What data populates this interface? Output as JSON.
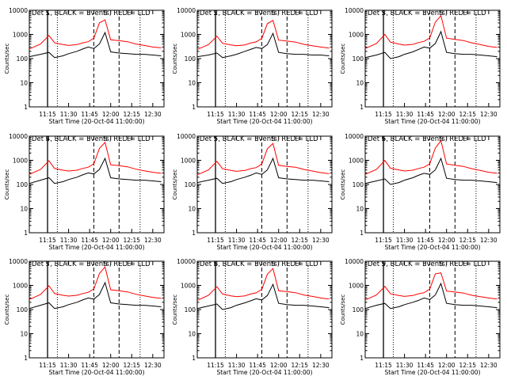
{
  "figure": {
    "ylabel": "Counts/sec",
    "xlabel": "Start Time (20-Oct-04 11:00:00)",
    "title_template": "Det {det},  BLACK = Events,  RED = LLD",
    "y_ticks": [
      "1",
      "10",
      "100",
      "1000",
      "10000"
    ],
    "x_ticks": [
      "11:15",
      "11:30",
      "11:45",
      "12:00",
      "12:15",
      "12:30"
    ],
    "markers": [
      "S",
      "S",
      "E"
    ],
    "colors": {
      "events": "#000000",
      "lld": "#ff0000",
      "background": "#ffffff"
    }
  },
  "chart_data": [
    {
      "type": "line",
      "title": "Det 1,  BLACK = Events,  RED = LLD",
      "detector": "1",
      "xlabel": "Start Time (20-Oct-04 11:00:00)",
      "ylabel": "Counts/sec",
      "y_scale": "log",
      "ylim": [
        1,
        10000
      ],
      "xlim": [
        "11:02",
        "12:38"
      ],
      "x": [
        "11:02",
        "11:10",
        "11:16",
        "11:20",
        "11:26",
        "11:30",
        "11:36",
        "11:40",
        "11:44",
        "11:48",
        "11:52",
        "11:56",
        "12:00",
        "12:06",
        "12:12",
        "12:18",
        "12:24",
        "12:30",
        "12:36"
      ],
      "series": [
        {
          "name": "Events",
          "color": "#000000",
          "values": [
            120,
            150,
            180,
            110,
            130,
            160,
            200,
            250,
            300,
            260,
            400,
            1200,
            190,
            170,
            160,
            150,
            150,
            140,
            130
          ]
        },
        {
          "name": "LLD",
          "color": "#ff0000",
          "values": [
            250,
            400,
            900,
            450,
            380,
            350,
            380,
            450,
            500,
            700,
            3000,
            4000,
            600,
            550,
            500,
            400,
            350,
            300,
            280
          ]
        }
      ]
    },
    {
      "type": "line",
      "title": "Det 2,  BLACK = Events,  RED = LLD",
      "detector": "2",
      "xlabel": "Start Time (20-Oct-04 11:00:00)",
      "ylabel": "Counts/sec",
      "y_scale": "log",
      "ylim": [
        1,
        10000
      ],
      "xlim": [
        "11:02",
        "12:38"
      ],
      "x": [
        "11:02",
        "11:10",
        "11:16",
        "11:20",
        "11:26",
        "11:30",
        "11:36",
        "11:40",
        "11:44",
        "11:48",
        "11:52",
        "11:56",
        "12:00",
        "12:06",
        "12:12",
        "12:18",
        "12:24",
        "12:30",
        "12:36"
      ],
      "series": [
        {
          "name": "Events",
          "color": "#000000",
          "values": [
            120,
            140,
            170,
            110,
            130,
            150,
            200,
            240,
            290,
            260,
            380,
            1100,
            180,
            160,
            150,
            150,
            140,
            140,
            130
          ]
        },
        {
          "name": "LLD",
          "color": "#ff0000",
          "values": [
            240,
            380,
            850,
            430,
            370,
            340,
            370,
            440,
            490,
            680,
            2800,
            3800,
            580,
            530,
            480,
            390,
            340,
            300,
            270
          ]
        }
      ]
    },
    {
      "type": "line",
      "title": "Det 3,  BLACK = Events,  RED = LLD",
      "detector": "3",
      "xlabel": "Start Time (20-Oct-04 11:00:00)",
      "ylabel": "Counts/sec",
      "y_scale": "log",
      "ylim": [
        1,
        10000
      ],
      "xlim": [
        "11:02",
        "12:38"
      ],
      "x": [
        "11:02",
        "11:10",
        "11:16",
        "11:20",
        "11:26",
        "11:30",
        "11:36",
        "11:40",
        "11:44",
        "11:48",
        "11:52",
        "11:56",
        "12:00",
        "12:06",
        "12:12",
        "12:18",
        "12:24",
        "12:30",
        "12:36"
      ],
      "series": [
        {
          "name": "Events",
          "color": "#000000",
          "values": [
            110,
            140,
            180,
            100,
            120,
            150,
            190,
            240,
            300,
            270,
            420,
            1300,
            180,
            160,
            150,
            150,
            140,
            130,
            120
          ]
        },
        {
          "name": "LLD",
          "color": "#ff0000",
          "values": [
            260,
            420,
            1000,
            480,
            400,
            360,
            390,
            460,
            520,
            720,
            3200,
            6000,
            700,
            620,
            560,
            450,
            380,
            320,
            290
          ]
        }
      ]
    },
    {
      "type": "line",
      "title": "Det 4,  BLACK = Events,  RED = LLD",
      "detector": "4",
      "xlabel": "Start Time (20-Oct-04 11:00:00)",
      "ylabel": "Counts/sec",
      "y_scale": "log",
      "ylim": [
        1,
        10000
      ],
      "xlim": [
        "11:02",
        "12:38"
      ],
      "x": [
        "11:02",
        "11:10",
        "11:16",
        "11:20",
        "11:26",
        "11:30",
        "11:36",
        "11:40",
        "11:44",
        "11:48",
        "11:52",
        "11:56",
        "12:00",
        "12:06",
        "12:12",
        "12:18",
        "12:24",
        "12:30",
        "12:36"
      ],
      "series": [
        {
          "name": "Events",
          "color": "#000000",
          "values": [
            110,
            150,
            190,
            110,
            130,
            160,
            200,
            250,
            300,
            270,
            420,
            1200,
            190,
            170,
            160,
            150,
            150,
            140,
            130
          ]
        },
        {
          "name": "LLD",
          "color": "#ff0000",
          "values": [
            260,
            420,
            950,
            460,
            390,
            360,
            390,
            460,
            520,
            720,
            3100,
            5500,
            650,
            600,
            540,
            430,
            370,
            320,
            290
          ]
        }
      ]
    },
    {
      "type": "line",
      "title": "Det 5,  BLACK = Events,  RED = LLD",
      "detector": "5",
      "xlabel": "Start Time (20-Oct-04 11:00:00)",
      "ylabel": "Counts/sec",
      "y_scale": "log",
      "ylim": [
        1,
        10000
      ],
      "xlim": [
        "11:02",
        "12:38"
      ],
      "x": [
        "11:02",
        "11:10",
        "11:16",
        "11:20",
        "11:26",
        "11:30",
        "11:36",
        "11:40",
        "11:44",
        "11:48",
        "11:52",
        "11:56",
        "12:00",
        "12:06",
        "12:12",
        "12:18",
        "12:24",
        "12:30",
        "12:36"
      ],
      "series": [
        {
          "name": "Events",
          "color": "#000000",
          "values": [
            120,
            150,
            180,
            110,
            130,
            160,
            200,
            240,
            300,
            260,
            400,
            1200,
            190,
            170,
            160,
            150,
            150,
            140,
            130
          ]
        },
        {
          "name": "LLD",
          "color": "#ff0000",
          "values": [
            250,
            400,
            900,
            450,
            380,
            350,
            380,
            450,
            500,
            700,
            3000,
            5000,
            620,
            560,
            520,
            420,
            360,
            310,
            280
          ]
        }
      ]
    },
    {
      "type": "line",
      "title": "Det 6,  BLACK = Events,  RED = LLD",
      "detector": "6",
      "xlabel": "Start Time (20-Oct-04 11:00:00)",
      "ylabel": "Counts/sec",
      "y_scale": "log",
      "ylim": [
        1,
        10000
      ],
      "xlim": [
        "11:02",
        "12:38"
      ],
      "x": [
        "11:02",
        "11:10",
        "11:16",
        "11:20",
        "11:26",
        "11:30",
        "11:36",
        "11:40",
        "11:44",
        "11:48",
        "11:52",
        "11:56",
        "12:00",
        "12:06",
        "12:12",
        "12:18",
        "12:24",
        "12:30",
        "12:36"
      ],
      "series": [
        {
          "name": "Events",
          "color": "#000000",
          "values": [
            110,
            140,
            170,
            100,
            120,
            150,
            190,
            240,
            290,
            260,
            400,
            1200,
            180,
            160,
            150,
            150,
            140,
            130,
            120
          ]
        },
        {
          "name": "LLD",
          "color": "#ff0000",
          "values": [
            260,
            420,
            980,
            470,
            400,
            360,
            390,
            460,
            520,
            720,
            3200,
            6500,
            700,
            620,
            560,
            450,
            380,
            320,
            290
          ]
        }
      ]
    },
    {
      "type": "line",
      "title": "Det 7,  BLACK = Events,  RED = LLD",
      "detector": "7",
      "xlabel": "Start Time (20-Oct-04 11:00:00)",
      "ylabel": "Counts/sec",
      "y_scale": "log",
      "ylim": [
        1,
        10000
      ],
      "xlim": [
        "11:02",
        "12:38"
      ],
      "x": [
        "11:02",
        "11:10",
        "11:16",
        "11:20",
        "11:26",
        "11:30",
        "11:36",
        "11:40",
        "11:44",
        "11:48",
        "11:52",
        "11:56",
        "12:00",
        "12:06",
        "12:12",
        "12:18",
        "12:24",
        "12:30",
        "12:36"
      ],
      "series": [
        {
          "name": "Events",
          "color": "#000000",
          "values": [
            110,
            150,
            190,
            110,
            130,
            160,
            200,
            250,
            300,
            270,
            420,
            1300,
            190,
            170,
            160,
            150,
            150,
            140,
            130
          ]
        },
        {
          "name": "LLD",
          "color": "#ff0000",
          "values": [
            260,
            420,
            960,
            460,
            390,
            360,
            390,
            460,
            520,
            720,
            3100,
            5800,
            660,
            600,
            540,
            430,
            370,
            320,
            290
          ]
        }
      ]
    },
    {
      "type": "line",
      "title": "Det 8,  BLACK = Events,  RED = LLD",
      "detector": "8",
      "xlabel": "Start Time (20-Oct-04 11:00:00)",
      "ylabel": "Counts/sec",
      "y_scale": "log",
      "ylim": [
        1,
        10000
      ],
      "xlim": [
        "11:02",
        "12:38"
      ],
      "x": [
        "11:02",
        "11:10",
        "11:16",
        "11:20",
        "11:26",
        "11:30",
        "11:36",
        "11:40",
        "11:44",
        "11:48",
        "11:52",
        "11:56",
        "12:00",
        "12:06",
        "12:12",
        "12:18",
        "12:24",
        "12:30",
        "12:36"
      ],
      "series": [
        {
          "name": "Events",
          "color": "#000000",
          "values": [
            110,
            140,
            170,
            100,
            120,
            150,
            190,
            230,
            280,
            250,
            380,
            1100,
            180,
            160,
            150,
            150,
            140,
            130,
            120
          ]
        },
        {
          "name": "LLD",
          "color": "#ff0000",
          "values": [
            240,
            390,
            880,
            440,
            370,
            340,
            370,
            440,
            490,
            680,
            2900,
            5000,
            600,
            550,
            500,
            400,
            350,
            300,
            270
          ]
        }
      ]
    },
    {
      "type": "line",
      "title": "Det 9,  BLACK = Events,  RED = LLD",
      "detector": "9",
      "xlabel": "Start Time (20-Oct-04 11:00:00)",
      "ylabel": "Counts/sec",
      "y_scale": "log",
      "ylim": [
        1,
        10000
      ],
      "xlim": [
        "11:02",
        "12:38"
      ],
      "x": [
        "11:02",
        "11:10",
        "11:16",
        "11:20",
        "11:26",
        "11:30",
        "11:36",
        "11:40",
        "11:44",
        "11:48",
        "11:52",
        "11:56",
        "12:00",
        "12:06",
        "12:12",
        "12:18",
        "12:24",
        "12:30",
        "12:36"
      ],
      "series": [
        {
          "name": "Events",
          "color": "#000000",
          "values": [
            110,
            150,
            180,
            110,
            130,
            160,
            200,
            240,
            300,
            260,
            400,
            1200,
            180,
            160,
            150,
            150,
            140,
            130,
            120
          ]
        },
        {
          "name": "LLD",
          "color": "#ff0000",
          "values": [
            250,
            400,
            900,
            450,
            380,
            350,
            380,
            450,
            500,
            700,
            3000,
            3300,
            580,
            530,
            480,
            390,
            340,
            300,
            270
          ]
        }
      ]
    }
  ]
}
